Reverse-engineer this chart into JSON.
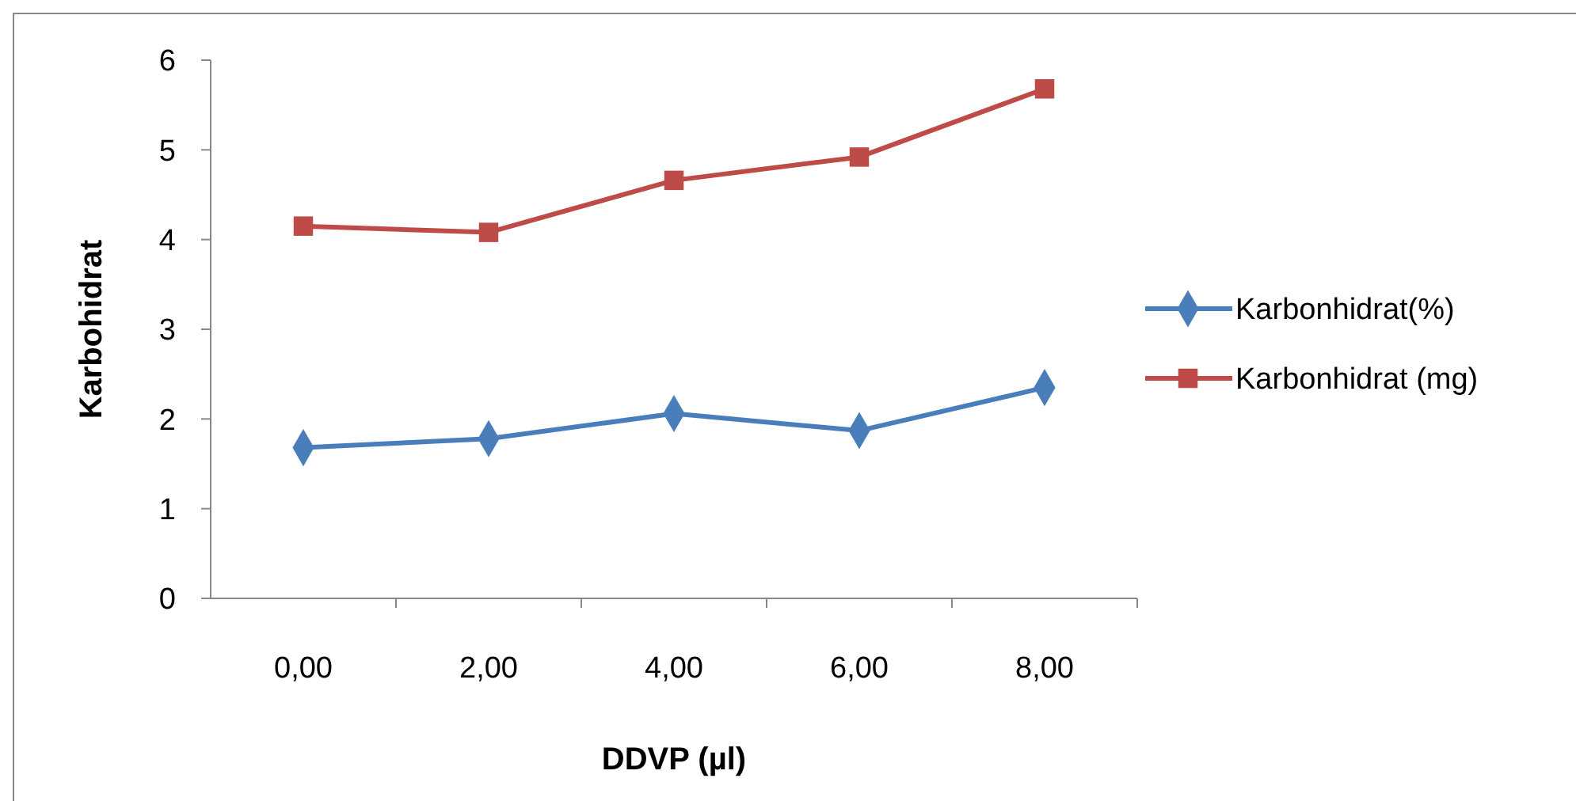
{
  "chart_data": {
    "type": "line",
    "xlabel": "DDVP (µl)",
    "ylabel": "Karbohidrat",
    "categories": [
      "0,00",
      "2,00",
      "4,00",
      "6,00",
      "8,00"
    ],
    "series": [
      {
        "name": "Karbonhidrat(%)",
        "color": "#4a7ebb",
        "marker": "diamond",
        "values": [
          1.68,
          1.78,
          2.06,
          1.87,
          2.35
        ]
      },
      {
        "name": "Karbonhidrat (mg)",
        "color": "#be4b48",
        "marker": "square",
        "values": [
          4.15,
          4.08,
          4.66,
          4.92,
          5.68
        ]
      }
    ],
    "ylim": [
      0,
      6
    ],
    "yticks": [
      0,
      1,
      2,
      3,
      4,
      5,
      6
    ],
    "grid": false,
    "legend": "right"
  }
}
